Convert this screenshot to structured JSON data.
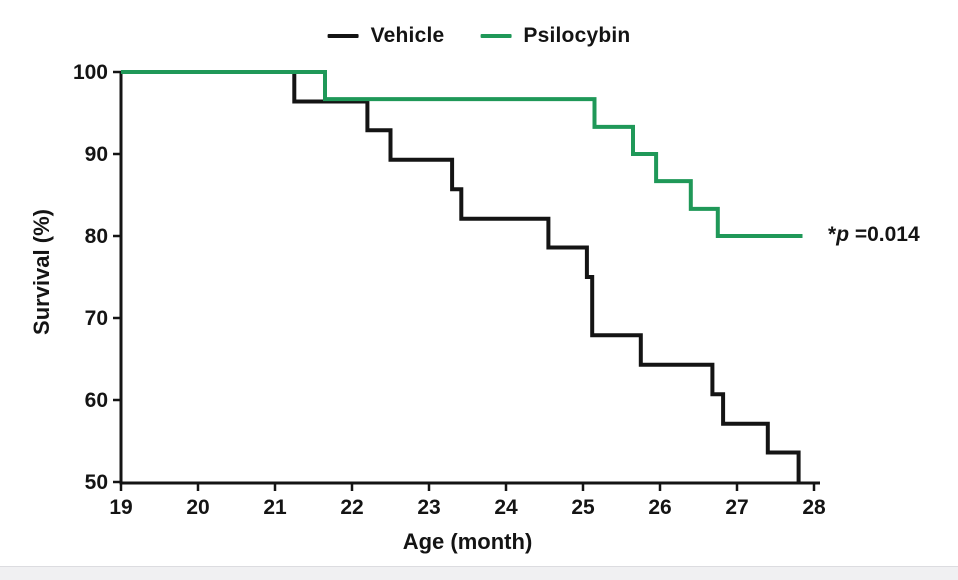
{
  "figure": {
    "background": "#ffffff",
    "footer_strip_color": "#f0f0f2",
    "axis_color": "#141414"
  },
  "legend": {
    "items": [
      {
        "label": "Vehicle",
        "color": "#141414"
      },
      {
        "label": "Psilocybin",
        "color": "#1f9858"
      }
    ]
  },
  "annotation": {
    "star": "*",
    "p": "p",
    "value": " =0.014"
  },
  "chart_data": {
    "type": "line",
    "subtype": "kaplan-meier-step-survival",
    "title": "",
    "xlabel": "Age (month)",
    "ylabel": "Survival (%)",
    "xlim": [
      19,
      28
    ],
    "ylim": [
      50,
      100
    ],
    "x_ticks": [
      19,
      20,
      21,
      22,
      23,
      24,
      25,
      26,
      27,
      28
    ],
    "y_ticks": [
      50,
      60,
      70,
      80,
      90,
      100
    ],
    "grid": false,
    "legend_position": "top-center",
    "annotation_text": "*p =0.014",
    "series": [
      {
        "name": "Vehicle",
        "color": "#141414",
        "points": [
          [
            19,
            100
          ],
          [
            21.25,
            100
          ],
          [
            21.25,
            96.4
          ],
          [
            22.2,
            96.4
          ],
          [
            22.2,
            92.9
          ],
          [
            22.5,
            92.9
          ],
          [
            22.5,
            89.3
          ],
          [
            23.3,
            89.3
          ],
          [
            23.3,
            85.7
          ],
          [
            23.42,
            85.7
          ],
          [
            23.42,
            82.1
          ],
          [
            24.55,
            82.1
          ],
          [
            24.55,
            78.6
          ],
          [
            25.05,
            78.6
          ],
          [
            25.05,
            75
          ],
          [
            25.12,
            75
          ],
          [
            25.12,
            67.9
          ],
          [
            25.75,
            67.9
          ],
          [
            25.75,
            64.3
          ],
          [
            26.68,
            64.3
          ],
          [
            26.68,
            60.7
          ],
          [
            26.82,
            60.7
          ],
          [
            26.82,
            57.1
          ],
          [
            27.4,
            57.1
          ],
          [
            27.4,
            53.6
          ],
          [
            27.8,
            53.6
          ],
          [
            27.8,
            50
          ]
        ]
      },
      {
        "name": "Psilocybin",
        "color": "#1f9858",
        "points": [
          [
            19,
            100
          ],
          [
            21.65,
            100
          ],
          [
            21.65,
            96.7
          ],
          [
            25.15,
            96.7
          ],
          [
            25.15,
            93.3
          ],
          [
            25.65,
            93.3
          ],
          [
            25.65,
            90
          ],
          [
            25.95,
            90
          ],
          [
            25.95,
            86.7
          ],
          [
            26.4,
            86.7
          ],
          [
            26.4,
            83.3
          ],
          [
            26.75,
            83.3
          ],
          [
            26.75,
            80
          ],
          [
            27.85,
            80
          ]
        ]
      }
    ]
  }
}
